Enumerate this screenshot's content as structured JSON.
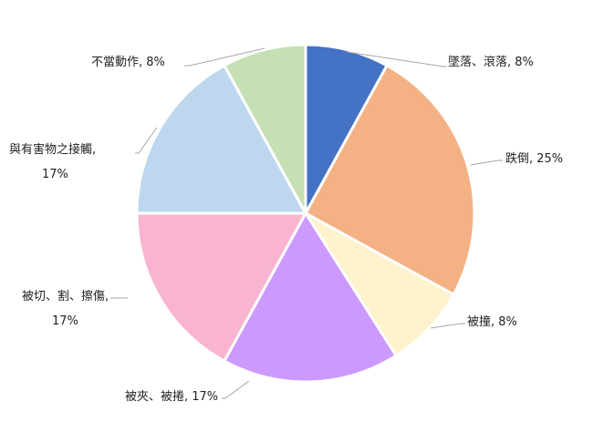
{
  "chart_data": {
    "type": "pie",
    "title": "",
    "start_angle": "12 o'clock, clockwise",
    "slices": [
      {
        "label": "墜落、滾落",
        "value": 8,
        "display": "墜落、滾落, 8%",
        "color": "#4472C4"
      },
      {
        "label": "跌倒",
        "value": 25,
        "display": "跌倒, 25%",
        "color": "#F4B183"
      },
      {
        "label": "被撞",
        "value": 8,
        "display": "被撞, 8%",
        "color": "#FFF2CC"
      },
      {
        "label": "被夾、被捲",
        "value": 17,
        "display": "被夾、被捲, 17%",
        "color": "#CC99FF"
      },
      {
        "label": "被切、割、擦傷",
        "value": 17,
        "display": "被切、割、擦傷,",
        "display2": "17%",
        "color": "#F8B4D0"
      },
      {
        "label": "與有害物之接觸",
        "value": 17,
        "display": "與有害物之接觸,",
        "display2": "17%",
        "color": "#BDD7EE"
      },
      {
        "label": "不當動作",
        "value": 8,
        "display": "不當動作, 8%",
        "color": "#C5E0B4"
      }
    ],
    "legend": "none",
    "data_labels": "outside with leader lines"
  }
}
